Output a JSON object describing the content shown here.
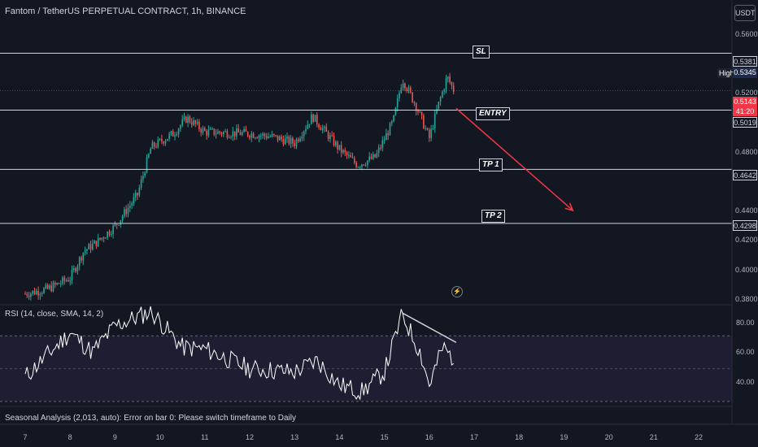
{
  "header": {
    "title": "Fantom / TetherUS PERPETUAL CONTRACT, 1h, BINANCE",
    "currency": "USDT"
  },
  "annotations": {
    "sl": "SL",
    "entry": "ENTRY",
    "tp1": "TP 1",
    "tp2": "TP 2"
  },
  "price_scale": {
    "ticks": [
      "0.5600",
      "0.5200",
      "0.4800",
      "0.4400",
      "0.4200",
      "0.4000",
      "0.3800"
    ],
    "level_tags": {
      "sl": "0.5381",
      "entry": "0.5019",
      "tp1": "0.4642",
      "tp2": "0.4298"
    },
    "high_label": "High",
    "high_value": "0.5345",
    "last_price": "0.5143",
    "countdown": "41:20"
  },
  "rsi": {
    "label": "RSI (14, close, SMA, 14, 2)",
    "ticks": [
      "80.00",
      "60.00",
      "40.00"
    ],
    "upper_band": 70,
    "mid_band": 50,
    "lower_band": 30
  },
  "seasonal": "Seasonal Analysis (2,013, auto): Error on bar 0: Please switch timeframe to Daily",
  "time_axis": [
    "7",
    "8",
    "9",
    "10",
    "11",
    "12",
    "13",
    "14",
    "15",
    "16",
    "17",
    "18",
    "19",
    "20",
    "21",
    "22"
  ],
  "colors": {
    "background": "#131722",
    "up": "#26a69a",
    "down": "#ef5350",
    "arrow": "#f23645",
    "rsi_line": "#ffffff",
    "rsi_band": "#7e57c2"
  },
  "chart_data": {
    "type": "candlestick",
    "timeframe": "1h",
    "price_range": [
      0.378,
      0.572
    ],
    "levels": {
      "sl": 0.5381,
      "entry": 0.5019,
      "tp1": 0.4642,
      "tp2": 0.4298,
      "last": 0.5143,
      "high": 0.5345
    },
    "path_close_by_day": [
      {
        "day": 7,
        "close": 0.385
      },
      {
        "day": 7.5,
        "close": 0.388
      },
      {
        "day": 8,
        "close": 0.395
      },
      {
        "day": 8.3,
        "close": 0.412
      },
      {
        "day": 8.6,
        "close": 0.418
      },
      {
        "day": 9,
        "close": 0.428
      },
      {
        "day": 9.5,
        "close": 0.448
      },
      {
        "day": 9.8,
        "close": 0.478
      },
      {
        "day": 10.3,
        "close": 0.487
      },
      {
        "day": 10.6,
        "close": 0.497
      },
      {
        "day": 11,
        "close": 0.488
      },
      {
        "day": 12,
        "close": 0.487
      },
      {
        "day": 12.5,
        "close": 0.485
      },
      {
        "day": 13,
        "close": 0.481
      },
      {
        "day": 13.4,
        "close": 0.498
      },
      {
        "day": 14,
        "close": 0.477
      },
      {
        "day": 14.4,
        "close": 0.467
      },
      {
        "day": 14.8,
        "close": 0.472
      },
      {
        "day": 15.2,
        "close": 0.495
      },
      {
        "day": 15.4,
        "close": 0.522
      },
      {
        "day": 15.7,
        "close": 0.505
      },
      {
        "day": 16,
        "close": 0.484
      },
      {
        "day": 16.2,
        "close": 0.505
      },
      {
        "day": 16.4,
        "close": 0.523
      },
      {
        "day": 16.55,
        "close": 0.5143
      }
    ],
    "projection_arrow": {
      "from_day": 16.6,
      "from_price": 0.503,
      "to_day": 19.2,
      "to_price": 0.438
    },
    "rsi_range": [
      27,
      89
    ],
    "rsi_path": [
      {
        "day": 7,
        "value": 45
      },
      {
        "day": 8,
        "value": 72
      },
      {
        "day": 8.5,
        "value": 60
      },
      {
        "day": 9,
        "value": 76
      },
      {
        "day": 9.8,
        "value": 85
      },
      {
        "day": 10.5,
        "value": 63
      },
      {
        "day": 11,
        "value": 62
      },
      {
        "day": 12,
        "value": 50
      },
      {
        "day": 13,
        "value": 48
      },
      {
        "day": 13.5,
        "value": 55
      },
      {
        "day": 14,
        "value": 40
      },
      {
        "day": 14.5,
        "value": 36
      },
      {
        "day": 15,
        "value": 48
      },
      {
        "day": 15.4,
        "value": 83
      },
      {
        "day": 15.8,
        "value": 60
      },
      {
        "day": 16,
        "value": 40
      },
      {
        "day": 16.3,
        "value": 63
      },
      {
        "day": 16.55,
        "value": 56
      }
    ],
    "rsi_divergence_line": {
      "from_day": 15.4,
      "from_value": 84,
      "to_day": 16.6,
      "to_value": 66
    }
  }
}
